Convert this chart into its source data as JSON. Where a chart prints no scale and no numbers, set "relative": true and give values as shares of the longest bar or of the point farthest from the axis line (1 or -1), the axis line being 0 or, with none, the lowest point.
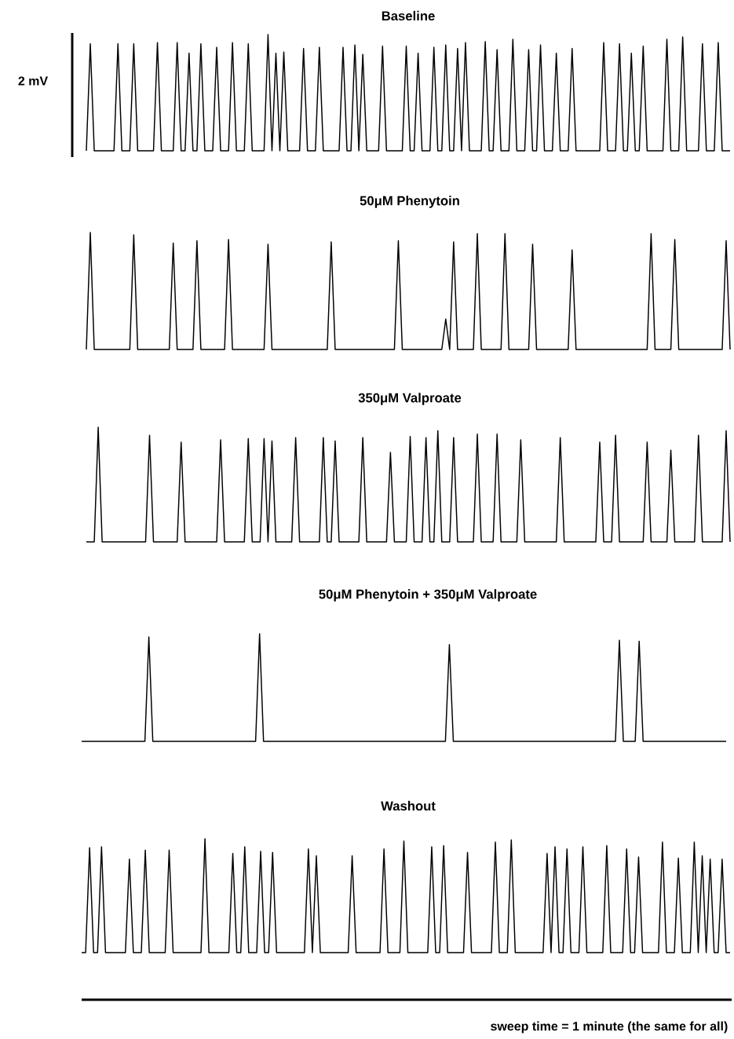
{
  "chart_data": [
    {
      "type": "line",
      "title": "Baseline",
      "relative": true,
      "tick_labels": false,
      "annotations": [
        "2 mV"
      ],
      "categories": [
        null,
        null,
        null,
        null,
        null,
        null,
        null,
        null,
        null,
        null,
        null,
        null,
        null,
        null,
        null,
        null,
        null,
        null,
        null,
        null,
        null,
        null,
        null,
        null,
        null,
        null,
        null,
        null,
        null,
        null,
        null,
        null,
        null,
        null,
        null,
        null,
        null,
        null,
        null,
        null,
        null,
        null,
        null,
        null,
        null,
        null,
        null,
        null,
        null,
        null,
        null,
        null,
        null,
        null,
        null,
        null,
        null,
        null,
        null,
        null,
        null,
        null,
        null,
        null,
        null,
        null,
        null,
        null,
        null,
        null,
        null,
        null,
        null,
        null,
        null,
        null,
        null,
        null,
        null,
        null,
        null,
        null,
        null,
        null,
        null,
        null,
        null,
        null,
        null,
        null,
        null,
        null,
        null,
        null,
        null,
        null,
        null,
        null,
        null,
        null,
        null,
        null,
        null,
        null,
        null,
        null,
        null,
        null,
        null,
        null,
        null,
        null,
        null,
        null,
        null,
        null,
        null,
        null,
        null,
        null,
        null,
        null,
        null,
        null,
        null,
        null,
        null,
        null,
        null,
        null,
        null,
        null,
        null,
        null,
        null,
        null,
        null,
        null,
        null,
        null,
        null,
        null,
        null,
        null,
        null,
        null,
        null,
        null,
        null,
        null,
        null,
        null,
        null,
        null,
        null,
        null,
        null,
        null,
        null,
        null,
        null,
        null,
        null,
        null
      ],
      "series": [
        {
          "color": "#000000",
          "values": [
            0,
            0.92,
            0,
            0,
            0,
            0,
            0,
            0,
            0.92,
            0,
            0,
            0,
            0.92,
            0,
            0,
            0,
            0,
            0,
            0.93,
            0,
            0,
            0,
            0,
            0.93,
            0,
            0,
            0.84,
            0,
            0,
            0.92,
            0,
            0,
            0,
            0.89,
            0,
            0,
            0,
            0.93,
            0,
            0,
            0,
            0.92,
            0,
            0,
            0,
            0,
            1.0,
            0,
            0.84,
            0,
            0.85,
            0,
            0,
            0,
            0,
            0.88,
            0,
            0,
            0,
            0.89,
            0,
            0,
            0,
            0,
            0,
            0.89,
            0,
            0,
            0.91,
            0,
            0.83,
            0,
            0,
            0,
            0,
            0.9,
            0,
            0,
            0,
            0,
            0,
            0.9,
            0,
            0,
            0.84,
            0,
            0,
            0,
            0.89,
            0,
            0,
            0.91,
            0,
            0,
            0.88,
            0,
            0.93,
            0,
            0,
            0,
            0,
            0.94,
            0,
            0,
            0.87,
            0,
            0,
            0,
            0.96,
            0,
            0,
            0,
            0.87,
            0,
            0,
            0.91,
            0,
            0,
            0,
            0.84,
            0,
            0,
            0,
            0.88,
            0,
            0,
            0,
            0,
            0,
            0,
            0,
            0.93,
            0,
            0,
            0,
            0.92,
            0,
            0,
            0.84,
            0,
            0,
            0.9,
            0,
            0,
            0,
            0,
            0,
            0.96,
            0,
            0,
            0,
            0.98,
            0,
            0,
            0,
            0,
            0.92,
            0,
            0,
            0,
            0.93,
            0,
            0,
            0
          ]
        }
      ]
    },
    {
      "type": "line",
      "title": "50μM Phenytoin",
      "relative": true,
      "tick_labels": false,
      "categories": [
        null,
        null,
        null,
        null,
        null,
        null,
        null,
        null,
        null,
        null,
        null,
        null,
        null,
        null,
        null,
        null,
        null,
        null,
        null,
        null,
        null,
        null,
        null,
        null,
        null,
        null,
        null,
        null,
        null,
        null,
        null,
        null,
        null,
        null,
        null,
        null,
        null,
        null,
        null,
        null,
        null,
        null,
        null,
        null,
        null,
        null,
        null,
        null,
        null,
        null,
        null,
        null,
        null,
        null,
        null,
        null,
        null,
        null,
        null,
        null,
        null,
        null,
        null,
        null,
        null,
        null,
        null,
        null,
        null,
        null,
        null,
        null,
        null,
        null,
        null,
        null,
        null,
        null,
        null,
        null,
        null,
        null,
        null,
        null,
        null,
        null,
        null,
        null,
        null,
        null,
        null,
        null,
        null,
        null,
        null,
        null,
        null,
        null,
        null,
        null,
        null,
        null,
        null,
        null,
        null,
        null,
        null,
        null,
        null,
        null,
        null,
        null,
        null,
        null,
        null,
        null,
        null,
        null,
        null,
        null,
        null,
        null,
        null,
        null,
        null,
        null,
        null,
        null,
        null,
        null,
        null,
        null,
        null,
        null,
        null,
        null,
        null,
        null,
        null,
        null,
        null,
        null,
        null,
        null,
        null,
        null,
        null,
        null,
        null,
        null,
        null,
        null,
        null,
        null,
        null,
        null,
        null,
        null,
        null,
        null,
        null,
        null,
        null,
        null
      ],
      "series": [
        {
          "color": "#000000",
          "values": [
            0,
            1.0,
            0,
            0,
            0,
            0,
            0,
            0,
            0,
            0,
            0,
            0,
            0.98,
            0,
            0,
            0,
            0,
            0,
            0,
            0,
            0,
            0,
            0.91,
            0,
            0,
            0,
            0,
            0,
            0.93,
            0,
            0,
            0,
            0,
            0,
            0,
            0,
            0.94,
            0,
            0,
            0,
            0,
            0,
            0,
            0,
            0,
            0,
            0.9,
            0,
            0,
            0,
            0,
            0,
            0,
            0,
            0,
            0,
            0,
            0,
            0,
            0,
            0,
            0,
            0.92,
            0,
            0,
            0,
            0,
            0,
            0,
            0,
            0,
            0,
            0,
            0,
            0,
            0,
            0,
            0,
            0,
            0.93,
            0,
            0,
            0,
            0,
            0,
            0,
            0,
            0,
            0,
            0,
            0,
            0.26,
            0,
            0.92,
            0,
            0,
            0,
            0,
            0,
            0.99,
            0,
            0,
            0,
            0,
            0,
            0,
            0.99,
            0,
            0,
            0,
            0,
            0,
            0,
            0.9,
            0,
            0,
            0,
            0,
            0,
            0,
            0,
            0,
            0,
            0.85,
            0,
            0,
            0,
            0,
            0,
            0,
            0,
            0,
            0,
            0,
            0,
            0,
            0,
            0,
            0,
            0,
            0,
            0,
            0,
            0.99,
            0,
            0,
            0,
            0,
            0,
            0.94,
            0,
            0,
            0,
            0,
            0,
            0,
            0,
            0,
            0,
            0,
            0,
            0,
            0.93,
            0
          ]
        }
      ]
    },
    {
      "type": "line",
      "title": "350μM Valproate",
      "relative": true,
      "tick_labels": false,
      "categories": [
        null,
        null,
        null,
        null,
        null,
        null,
        null,
        null,
        null,
        null,
        null,
        null,
        null,
        null,
        null,
        null,
        null,
        null,
        null,
        null,
        null,
        null,
        null,
        null,
        null,
        null,
        null,
        null,
        null,
        null,
        null,
        null,
        null,
        null,
        null,
        null,
        null,
        null,
        null,
        null,
        null,
        null,
        null,
        null,
        null,
        null,
        null,
        null,
        null,
        null,
        null,
        null,
        null,
        null,
        null,
        null,
        null,
        null,
        null,
        null,
        null,
        null,
        null,
        null,
        null,
        null,
        null,
        null,
        null,
        null,
        null,
        null,
        null,
        null,
        null,
        null,
        null,
        null,
        null,
        null,
        null,
        null,
        null,
        null,
        null,
        null,
        null,
        null,
        null,
        null,
        null,
        null,
        null,
        null,
        null,
        null,
        null,
        null,
        null,
        null,
        null,
        null,
        null,
        null,
        null,
        null,
        null,
        null,
        null,
        null,
        null,
        null,
        null,
        null,
        null,
        null,
        null,
        null,
        null,
        null,
        null,
        null,
        null,
        null,
        null,
        null,
        null,
        null,
        null,
        null,
        null,
        null,
        null,
        null,
        null,
        null,
        null,
        null,
        null,
        null,
        null,
        null,
        null,
        null,
        null,
        null,
        null,
        null,
        null,
        null,
        null,
        null,
        null,
        null,
        null,
        null,
        null,
        null,
        null,
        null,
        null,
        null,
        null,
        null
      ],
      "series": [
        {
          "color": "#000000",
          "values": [
            0,
            0,
            0,
            1.0,
            0,
            0,
            0,
            0,
            0,
            0,
            0,
            0,
            0,
            0,
            0,
            0,
            0.93,
            0,
            0,
            0,
            0,
            0,
            0,
            0,
            0.87,
            0,
            0,
            0,
            0,
            0,
            0,
            0,
            0,
            0,
            0.89,
            0,
            0,
            0,
            0,
            0,
            0,
            0.9,
            0,
            0,
            0,
            0.9,
            0,
            0.88,
            0,
            0,
            0,
            0,
            0,
            0.91,
            0,
            0,
            0,
            0,
            0,
            0,
            0.91,
            0,
            0,
            0.88,
            0,
            0,
            0,
            0,
            0,
            0,
            0.91,
            0,
            0,
            0,
            0,
            0,
            0,
            0.78,
            0,
            0,
            0,
            0,
            0.92,
            0,
            0,
            0,
            0.91,
            0,
            0,
            0.97,
            0,
            0,
            0,
            0.91,
            0,
            0,
            0,
            0,
            0,
            0.94,
            0,
            0,
            0,
            0,
            0.94,
            0,
            0,
            0,
            0,
            0,
            0.89,
            0,
            0,
            0,
            0,
            0,
            0,
            0,
            0,
            0,
            0.91,
            0,
            0,
            0,
            0,
            0,
            0,
            0,
            0,
            0,
            0.87,
            0,
            0,
            0,
            0.93,
            0,
            0,
            0,
            0,
            0,
            0,
            0,
            0.87,
            0,
            0,
            0,
            0,
            0,
            0.8,
            0,
            0,
            0,
            0,
            0,
            0,
            0.93,
            0,
            0,
            0,
            0,
            0,
            0,
            0.97,
            0
          ]
        }
      ]
    },
    {
      "type": "line",
      "title": "50μM Phenytoin + 350μM Valproate",
      "relative": true,
      "tick_labels": false,
      "categories": [
        null,
        null,
        null,
        null,
        null,
        null,
        null,
        null,
        null,
        null,
        null,
        null,
        null,
        null,
        null,
        null,
        null,
        null,
        null,
        null,
        null,
        null,
        null,
        null,
        null,
        null,
        null,
        null,
        null,
        null,
        null,
        null,
        null,
        null,
        null,
        null,
        null,
        null,
        null,
        null,
        null,
        null,
        null,
        null,
        null,
        null,
        null,
        null,
        null,
        null,
        null,
        null,
        null,
        null,
        null,
        null,
        null,
        null,
        null,
        null,
        null,
        null,
        null,
        null,
        null,
        null,
        null,
        null,
        null,
        null,
        null,
        null,
        null,
        null,
        null,
        null,
        null,
        null,
        null,
        null,
        null,
        null,
        null,
        null,
        null,
        null,
        null,
        null,
        null,
        null,
        null,
        null,
        null,
        null,
        null,
        null,
        null,
        null,
        null,
        null,
        null,
        null,
        null,
        null,
        null,
        null,
        null,
        null,
        null,
        null,
        null,
        null,
        null,
        null,
        null,
        null,
        null,
        null,
        null,
        null,
        null,
        null,
        null,
        null,
        null,
        null,
        null,
        null,
        null,
        null,
        null,
        null,
        null,
        null,
        null,
        null,
        null,
        null,
        null,
        null,
        null,
        null,
        null,
        null,
        null,
        null,
        null,
        null,
        null,
        null,
        null,
        null,
        null,
        null,
        null,
        null,
        null,
        null,
        null,
        null,
        null,
        null,
        null,
        null
      ],
      "series": [
        {
          "color": "#000000",
          "values": [
            0,
            0,
            0,
            0,
            0,
            0,
            0,
            0,
            0,
            0,
            0,
            0,
            0,
            0,
            0,
            0,
            0,
            0.97,
            0,
            0,
            0,
            0,
            0,
            0,
            0,
            0,
            0,
            0,
            0,
            0,
            0,
            0,
            0,
            0,
            0,
            0,
            0,
            0,
            0,
            0,
            0,
            0,
            0,
            0,
            0,
            1.0,
            0,
            0,
            0,
            0,
            0,
            0,
            0,
            0,
            0,
            0,
            0,
            0,
            0,
            0,
            0,
            0,
            0,
            0,
            0,
            0,
            0,
            0,
            0,
            0,
            0,
            0,
            0,
            0,
            0,
            0,
            0,
            0,
            0,
            0,
            0,
            0,
            0,
            0,
            0,
            0,
            0,
            0,
            0,
            0,
            0,
            0,
            0,
            0.9,
            0,
            0,
            0,
            0,
            0,
            0,
            0,
            0,
            0,
            0,
            0,
            0,
            0,
            0,
            0,
            0,
            0,
            0,
            0,
            0,
            0,
            0,
            0,
            0,
            0,
            0,
            0,
            0,
            0,
            0,
            0,
            0,
            0,
            0,
            0,
            0,
            0,
            0,
            0,
            0,
            0,
            0,
            0.94,
            0,
            0,
            0,
            0,
            0.93,
            0,
            0,
            0,
            0,
            0,
            0,
            0,
            0,
            0,
            0,
            0,
            0,
            0,
            0,
            0,
            0,
            0,
            0,
            0,
            0,
            0,
            0
          ]
        }
      ]
    },
    {
      "type": "line",
      "title": "Washout",
      "relative": true,
      "tick_labels": false,
      "annotations": [
        "sweep time = 1 minute (the same for all)"
      ],
      "categories": [
        null,
        null,
        null,
        null,
        null,
        null,
        null,
        null,
        null,
        null,
        null,
        null,
        null,
        null,
        null,
        null,
        null,
        null,
        null,
        null,
        null,
        null,
        null,
        null,
        null,
        null,
        null,
        null,
        null,
        null,
        null,
        null,
        null,
        null,
        null,
        null,
        null,
        null,
        null,
        null,
        null,
        null,
        null,
        null,
        null,
        null,
        null,
        null,
        null,
        null,
        null,
        null,
        null,
        null,
        null,
        null,
        null,
        null,
        null,
        null,
        null,
        null,
        null,
        null,
        null,
        null,
        null,
        null,
        null,
        null,
        null,
        null,
        null,
        null,
        null,
        null,
        null,
        null,
        null,
        null,
        null,
        null,
        null,
        null,
        null,
        null,
        null,
        null,
        null,
        null,
        null,
        null,
        null,
        null,
        null,
        null,
        null,
        null,
        null,
        null,
        null,
        null,
        null,
        null,
        null,
        null,
        null,
        null,
        null,
        null,
        null,
        null,
        null,
        null,
        null,
        null,
        null,
        null,
        null,
        null,
        null,
        null,
        null,
        null,
        null,
        null,
        null,
        null,
        null,
        null,
        null,
        null,
        null,
        null,
        null,
        null,
        null,
        null,
        null,
        null,
        null,
        null,
        null,
        null,
        null,
        null,
        null,
        null,
        null,
        null,
        null,
        null,
        null,
        null,
        null,
        null,
        null,
        null,
        null,
        null,
        null,
        null,
        null,
        null
      ],
      "series": [
        {
          "color": "#000000",
          "values": [
            0,
            0,
            0.92,
            0,
            0,
            0.93,
            0,
            0,
            0,
            0,
            0,
            0,
            0.82,
            0,
            0,
            0,
            0.9,
            0,
            0,
            0,
            0,
            0,
            0.9,
            0,
            0,
            0,
            0,
            0,
            0,
            0,
            0,
            1.0,
            0,
            0,
            0,
            0,
            0,
            0,
            0.87,
            0,
            0,
            0.93,
            0,
            0,
            0,
            0.89,
            0,
            0,
            0.88,
            0,
            0,
            0,
            0,
            0,
            0,
            0,
            0,
            0.91,
            0,
            0.85,
            0,
            0,
            0,
            0,
            0,
            0,
            0,
            0,
            0.85,
            0,
            0,
            0,
            0,
            0,
            0,
            0,
            0.91,
            0,
            0,
            0,
            0,
            0.98,
            0,
            0,
            0,
            0,
            0,
            0,
            0.93,
            0,
            0,
            0.94,
            0,
            0,
            0,
            0,
            0,
            0.88,
            0,
            0,
            0,
            0,
            0,
            0,
            0.97,
            0,
            0,
            0,
            0.99,
            0,
            0,
            0,
            0,
            0,
            0,
            0,
            0,
            0.87,
            0,
            0.93,
            0,
            0,
            0.91,
            0,
            0,
            0,
            0.93,
            0,
            0,
            0,
            0,
            0,
            0.94,
            0,
            0,
            0,
            0,
            0.91,
            0,
            0,
            0.84,
            0,
            0,
            0,
            0,
            0,
            0.97,
            0,
            0,
            0,
            0.83,
            0,
            0,
            0,
            0.97,
            0,
            0.85,
            0,
            0.82,
            0,
            0,
            0.82,
            0,
            0
          ]
        }
      ]
    }
  ]
}
